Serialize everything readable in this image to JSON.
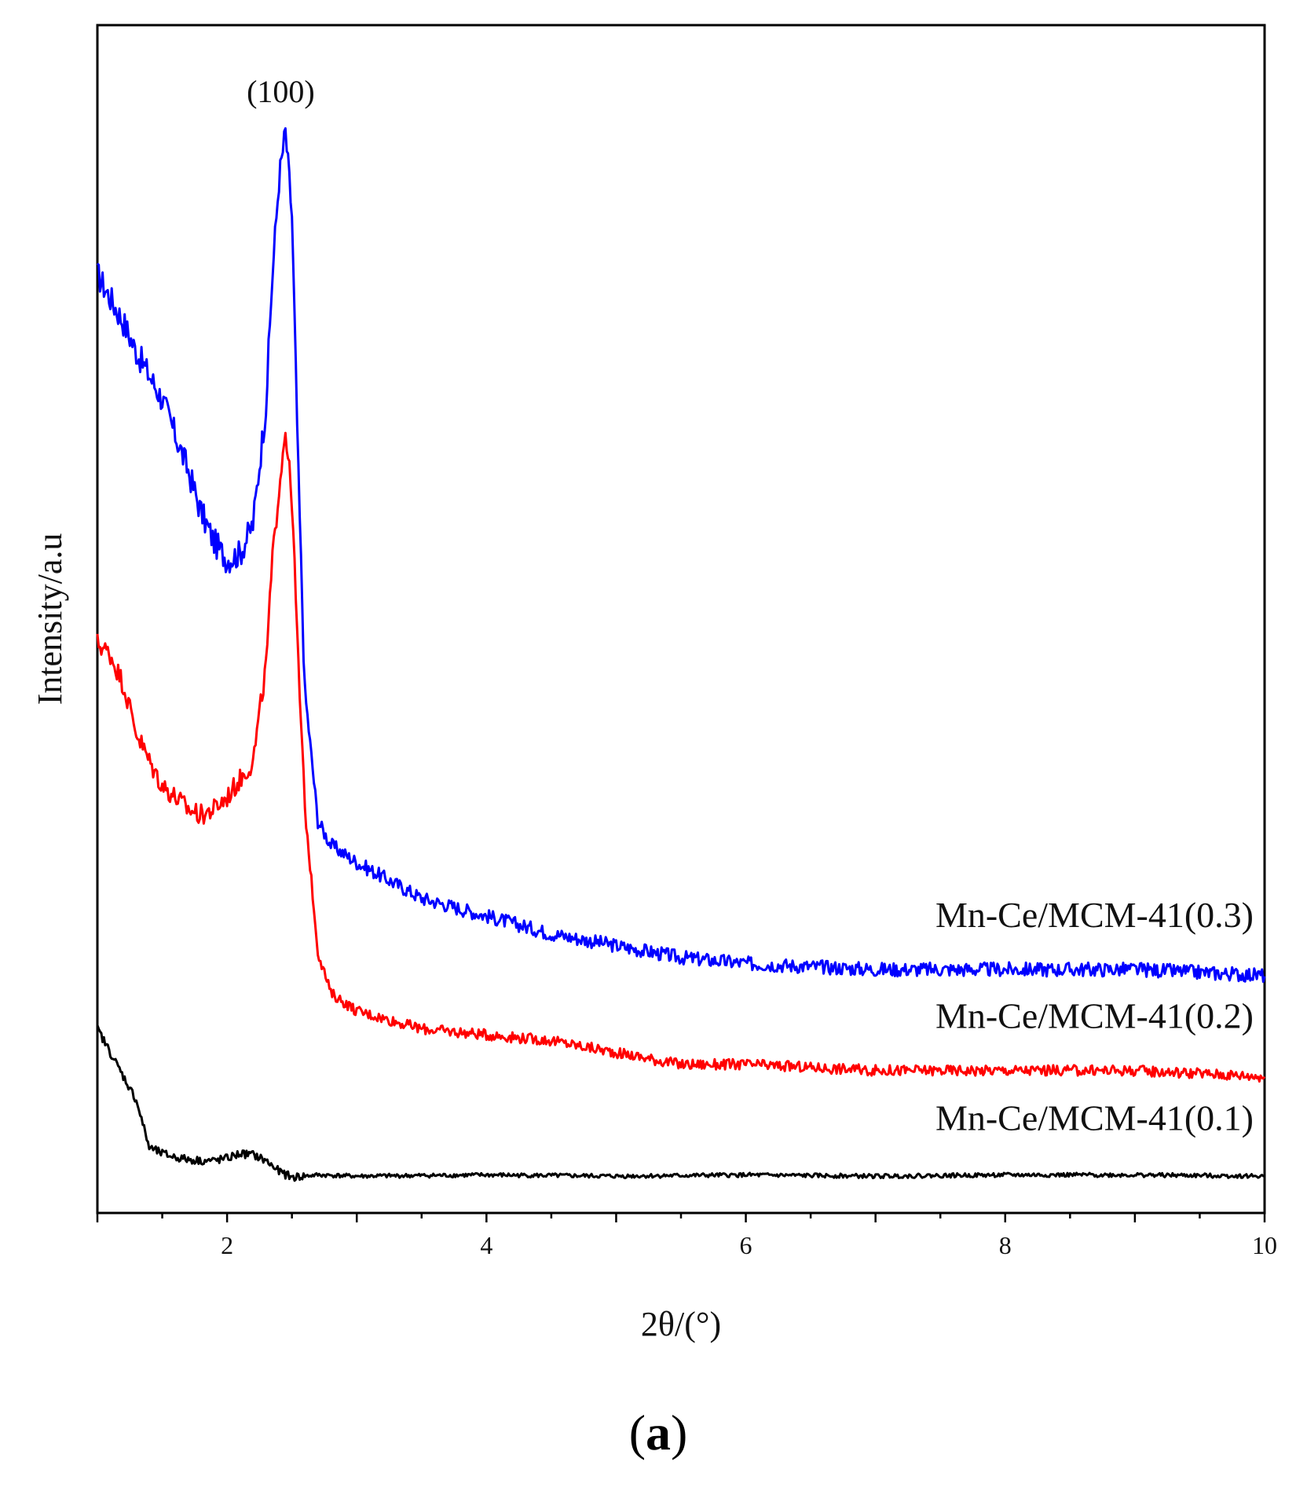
{
  "chart_data": {
    "type": "line",
    "title": "",
    "xlabel": "2θ/(°)",
    "ylabel": "Intensity/a.u",
    "xlim": [
      1,
      10
    ],
    "ylim": [
      0,
      100
    ],
    "x_ticks": [
      2,
      4,
      6,
      8,
      10
    ],
    "x_tick_labels": [
      "2",
      "4",
      "6",
      "8",
      "10"
    ],
    "y_ticks_labeled": false,
    "grid": false,
    "annotation": "(100)",
    "annotation_x": 2.45,
    "panel_label": {
      "open": "(",
      "letter": "a",
      "close": ")"
    },
    "colors": {
      "series_0.3": "#0000ff",
      "series_0.2": "#ff0000",
      "series_0.1": "#000000",
      "axis": "#000000"
    },
    "series": [
      {
        "name": "Mn-Ce/MCM-41(0.3)",
        "color": "#0000ff",
        "points": [
          [
            1.0,
            79.0
          ],
          [
            1.1,
            77.0
          ],
          [
            1.2,
            75.0
          ],
          [
            1.3,
            72.5
          ],
          [
            1.4,
            70.5
          ],
          [
            1.5,
            68.5
          ],
          [
            1.6,
            65.5
          ],
          [
            1.7,
            62.5
          ],
          [
            1.8,
            59.0
          ],
          [
            1.9,
            56.5
          ],
          [
            2.0,
            55.0
          ],
          [
            2.1,
            55.5
          ],
          [
            2.2,
            58.0
          ],
          [
            2.3,
            68.0
          ],
          [
            2.35,
            79.0
          ],
          [
            2.4,
            87.0
          ],
          [
            2.45,
            91.0
          ],
          [
            2.5,
            84.0
          ],
          [
            2.55,
            62.0
          ],
          [
            2.6,
            44.0
          ],
          [
            2.7,
            33.0
          ],
          [
            2.8,
            31.0
          ],
          [
            3.0,
            29.5
          ],
          [
            3.5,
            26.5
          ],
          [
            4.0,
            25.0
          ],
          [
            4.5,
            23.5
          ],
          [
            5.0,
            22.5
          ],
          [
            5.5,
            21.5
          ],
          [
            6.0,
            21.0
          ],
          [
            7.0,
            20.5
          ],
          [
            8.0,
            20.5
          ],
          [
            9.0,
            20.5
          ],
          [
            10.0,
            20.0
          ]
        ]
      },
      {
        "name": "Mn-Ce/MCM-41(0.2)",
        "color": "#ff0000",
        "points": [
          [
            1.0,
            48.0
          ],
          [
            1.1,
            47.0
          ],
          [
            1.2,
            44.5
          ],
          [
            1.3,
            40.5
          ],
          [
            1.4,
            38.0
          ],
          [
            1.5,
            36.0
          ],
          [
            1.6,
            35.0
          ],
          [
            1.7,
            34.0
          ],
          [
            1.8,
            33.5
          ],
          [
            1.9,
            34.0
          ],
          [
            2.0,
            35.0
          ],
          [
            2.1,
            36.5
          ],
          [
            2.2,
            38.0
          ],
          [
            2.3,
            46.0
          ],
          [
            2.35,
            55.0
          ],
          [
            2.4,
            61.0
          ],
          [
            2.45,
            66.0
          ],
          [
            2.5,
            60.0
          ],
          [
            2.55,
            46.0
          ],
          [
            2.6,
            34.0
          ],
          [
            2.7,
            22.0
          ],
          [
            2.8,
            18.5
          ],
          [
            3.0,
            17.0
          ],
          [
            3.5,
            15.5
          ],
          [
            4.0,
            15.0
          ],
          [
            4.5,
            14.5
          ],
          [
            5.0,
            13.5
          ],
          [
            5.5,
            12.5
          ],
          [
            6.0,
            12.5
          ],
          [
            7.0,
            12.0
          ],
          [
            8.0,
            12.0
          ],
          [
            9.0,
            12.0
          ],
          [
            10.0,
            11.5
          ]
        ]
      },
      {
        "name": "Mn-Ce/MCM-41(0.1)",
        "color": "#000000",
        "points": [
          [
            1.0,
            15.5
          ],
          [
            1.1,
            13.5
          ],
          [
            1.2,
            11.5
          ],
          [
            1.3,
            9.5
          ],
          [
            1.4,
            5.5
          ],
          [
            1.5,
            5.0
          ],
          [
            1.6,
            4.7
          ],
          [
            1.7,
            4.5
          ],
          [
            1.8,
            4.4
          ],
          [
            1.9,
            4.4
          ],
          [
            2.0,
            4.6
          ],
          [
            2.1,
            5.0
          ],
          [
            2.2,
            4.9
          ],
          [
            2.3,
            4.4
          ],
          [
            2.4,
            3.5
          ],
          [
            2.5,
            3.0
          ],
          [
            2.7,
            3.2
          ],
          [
            3.0,
            3.1
          ],
          [
            4.0,
            3.2
          ],
          [
            5.0,
            3.1
          ],
          [
            6.0,
            3.2
          ],
          [
            7.0,
            3.1
          ],
          [
            8.0,
            3.2
          ],
          [
            9.0,
            3.2
          ],
          [
            10.0,
            3.1
          ]
        ]
      }
    ]
  }
}
